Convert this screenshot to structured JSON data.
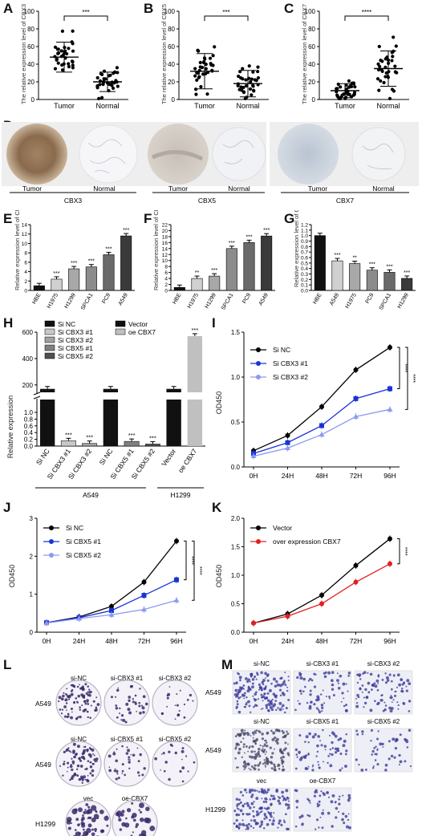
{
  "panels": {
    "A": {
      "letter": "A",
      "ylabel": "The relative expression level of CBX3",
      "categories": [
        "Tumor",
        "Normal"
      ],
      "sig": "***",
      "yticks": [
        "0",
        "20",
        "40",
        "60",
        "80",
        "100"
      ]
    },
    "B": {
      "letter": "B",
      "ylabel": "The relative expression level of CBX5",
      "categories": [
        "Tumor",
        "Normal"
      ],
      "sig": "***",
      "yticks": [
        "0",
        "20",
        "40",
        "60",
        "80",
        "100"
      ]
    },
    "C": {
      "letter": "C",
      "ylabel": "The relative expression level of CBX7",
      "categories": [
        "Tumor",
        "Normal"
      ],
      "sig": "****",
      "yticks": [
        "0",
        "20",
        "40",
        "60",
        "80",
        "100"
      ]
    },
    "D": {
      "letter": "D",
      "groups": [
        {
          "gene": "CBX3",
          "tumor": "Tumor",
          "normal": "Normal"
        },
        {
          "gene": "CBX5",
          "tumor": "Tumor",
          "normal": "Normal"
        },
        {
          "gene": "CBX7",
          "tumor": "Tumor",
          "normal": "Normal"
        }
      ]
    },
    "E": {
      "letter": "E",
      "ylabel": "Relative expression level of CBX3",
      "categories": [
        "HBE",
        "H1975",
        "H1299",
        "SPCA1",
        "PC9",
        "A549"
      ],
      "sig": [
        "",
        "***",
        "***",
        "***",
        "***",
        "***"
      ],
      "yticks": [
        "0",
        "2",
        "4",
        "6",
        "8",
        "10",
        "12",
        "14"
      ]
    },
    "F": {
      "letter": "F",
      "ylabel": "Relative expression level of CBX5",
      "categories": [
        "HBE",
        "H1975",
        "H1299",
        "SPCA1",
        "PC9",
        "A549"
      ],
      "sig": [
        "",
        "**",
        "***",
        "***",
        "***",
        "***"
      ],
      "yticks": [
        "0",
        "2",
        "4",
        "6",
        "8",
        "10",
        "12",
        "14",
        "16",
        "18",
        "20",
        "22"
      ]
    },
    "G": {
      "letter": "G",
      "ylabel": "Relative expression level of CBX7",
      "categories": [
        "HBE",
        "A549",
        "H1975",
        "PC9",
        "SPCA1",
        "H1299"
      ],
      "sig": [
        "",
        "***",
        "**",
        "***",
        "***",
        "***"
      ],
      "yticks": [
        "0.0",
        "0.1",
        "0.2",
        "0.3",
        "0.4",
        "0.5",
        "0.6",
        "0.7",
        "0.8",
        "0.9",
        "1.0",
        "1.1",
        "1.2"
      ]
    },
    "H": {
      "letter": "H",
      "ylabel": "Relative expression",
      "categories": [
        "Si NC",
        "Si CBX3 #1",
        "Si CBX3 #2",
        "Si NC",
        "Si CBX5 #1",
        "Si CBX5 #2",
        "Vector",
        "oe CBX7"
      ],
      "sig": [
        "",
        "***",
        "***",
        "",
        "***",
        "***",
        "",
        "***"
      ],
      "legend_left": [
        "Si NC",
        "Si CBX3 #1",
        "Si CBX3 #2",
        "Si CBX5 #1",
        "Si CBX5 #2"
      ],
      "legend_right": [
        "Vector",
        "oe CBX7"
      ],
      "yticks": [
        "0.0",
        "0.2",
        "0.4",
        "0.6",
        "0.8",
        "1.0",
        "200",
        "400",
        "600"
      ],
      "group_a": "A549",
      "group_b": "H1299"
    },
    "I": {
      "letter": "I",
      "ylabel": "OD450",
      "xticks": [
        "0H",
        "24H",
        "48H",
        "72H",
        "96H"
      ],
      "yticks": [
        "0.0",
        "0.5",
        "1.0",
        "1.5"
      ],
      "sig": [
        "****",
        "****"
      ]
    },
    "J": {
      "letter": "J",
      "ylabel": "OD450",
      "xticks": [
        "0H",
        "24H",
        "48H",
        "72H",
        "96H"
      ],
      "yticks": [
        "0",
        "1",
        "2",
        "3"
      ],
      "sig": [
        "****",
        "****"
      ]
    },
    "K": {
      "letter": "K",
      "ylabel": "OD450",
      "xticks": [
        "0H",
        "24H",
        "48H",
        "72H",
        "96H"
      ],
      "yticks": [
        "0.0",
        "0.5",
        "1.0",
        "1.5",
        "2.0"
      ],
      "sig": [
        "****"
      ]
    },
    "L": {
      "letter": "L",
      "rows": [
        {
          "cell": "A549",
          "labels": [
            "si-NC",
            "si-CBX3 #1",
            "si-CBX3 #2"
          ]
        },
        {
          "cell": "A549",
          "labels": [
            "si-NC",
            "si-CBX5 #1",
            "si-CBX5 #2"
          ]
        },
        {
          "cell": "H1299",
          "labels": [
            "vec",
            "oe-CBX7"
          ]
        }
      ]
    },
    "M": {
      "letter": "M",
      "rows": [
        {
          "cell": "A549",
          "labels": [
            "si-NC",
            "si-CBX3 #1",
            "si-CBX3 #2"
          ]
        },
        {
          "cell": "A549",
          "labels": [
            "si-NC",
            "si-CBX5 #1",
            "si-CBX5 #2"
          ]
        },
        {
          "cell": "H1299",
          "labels": [
            "vec",
            "oe-CBX7"
          ]
        }
      ]
    }
  },
  "chart_data": [
    {
      "panel": "A",
      "type": "scatter",
      "categories": [
        "Tumor",
        "Normal"
      ],
      "mean": [
        48,
        20
      ],
      "sd": [
        17,
        11
      ],
      "ylim": [
        0,
        100
      ],
      "ylabel": "The relative expression level of CBX3"
    },
    {
      "panel": "B",
      "type": "scatter",
      "categories": [
        "Tumor",
        "Normal"
      ],
      "mean": [
        32,
        18
      ],
      "sd": [
        20,
        15
      ],
      "ylim": [
        0,
        100
      ],
      "ylabel": "The relative expression level of CBX5"
    },
    {
      "panel": "C",
      "type": "scatter",
      "categories": [
        "Tumor",
        "Normal"
      ],
      "mean": [
        10,
        35
      ],
      "sd": [
        8,
        20
      ],
      "ylim": [
        0,
        100
      ],
      "ylabel": "The relative expression level of CBX7"
    },
    {
      "panel": "E",
      "type": "bar",
      "categories": [
        "HBE",
        "H1975",
        "H1299",
        "SPCA1",
        "PC9",
        "A549"
      ],
      "values": [
        1.0,
        2.4,
        4.6,
        5.0,
        7.6,
        11.6
      ],
      "ylim": [
        0,
        14
      ],
      "ylabel": "Relative expression level of CBX3",
      "colors": [
        "#111111",
        "#d0d0d0",
        "#a8a8a8",
        "#8c8c8c",
        "#6a6a6a",
        "#3a3a3a"
      ]
    },
    {
      "panel": "F",
      "type": "bar",
      "categories": [
        "HBE",
        "H1975",
        "H1299",
        "SPCA1",
        "PC9",
        "A549"
      ],
      "values": [
        1.0,
        4.0,
        4.8,
        14.0,
        16.0,
        18.2
      ],
      "ylim": [
        0,
        22
      ],
      "ylabel": "Relative expression level of CBX5",
      "colors": [
        "#111111",
        "#d0d0d0",
        "#a8a8a8",
        "#8c8c8c",
        "#6a6a6a",
        "#3a3a3a"
      ]
    },
    {
      "panel": "G",
      "type": "bar",
      "categories": [
        "HBE",
        "A549",
        "H1975",
        "PC9",
        "SPCA1",
        "H1299"
      ],
      "values": [
        1.0,
        0.54,
        0.49,
        0.37,
        0.33,
        0.22
      ],
      "ylim": [
        0,
        1.2
      ],
      "ylabel": "Relative expression level of CBX7",
      "colors": [
        "#111111",
        "#d0d0d0",
        "#a8a8a8",
        "#8c8c8c",
        "#6a6a6a",
        "#3a3a3a"
      ]
    },
    {
      "panel": "H",
      "type": "bar",
      "categories": [
        "Si NC",
        "Si CBX3 #1",
        "Si CBX3 #2",
        "Si NC",
        "Si CBX5 #1",
        "Si CBX5 #2",
        "Vector",
        "oe CBX7"
      ],
      "values": [
        1.0,
        0.16,
        0.08,
        1.0,
        0.14,
        0.06,
        1.0,
        570
      ],
      "ylim": [
        0,
        600
      ],
      "ylabel": "Relative expression",
      "colors": [
        "#111111",
        "#c8c8c8",
        "#a0a0a0",
        "#111111",
        "#808080",
        "#505050",
        "#111111",
        "#c0c0c0"
      ]
    },
    {
      "panel": "I",
      "type": "line",
      "x": [
        "0H",
        "24H",
        "48H",
        "72H",
        "96H"
      ],
      "ylim": [
        0,
        1.5
      ],
      "ylabel": "OD450",
      "series": [
        {
          "name": "Si NC",
          "values": [
            0.18,
            0.35,
            0.67,
            1.08,
            1.33
          ],
          "color": "#000000"
        },
        {
          "name": "Si CBX3 #1",
          "values": [
            0.15,
            0.27,
            0.46,
            0.76,
            0.87
          ],
          "color": "#1a33d6"
        },
        {
          "name": "Si CBX3 #2",
          "values": [
            0.12,
            0.21,
            0.36,
            0.56,
            0.64
          ],
          "color": "#8a9af0"
        }
      ]
    },
    {
      "panel": "J",
      "type": "line",
      "x": [
        "0H",
        "24H",
        "48H",
        "72H",
        "96H"
      ],
      "ylim": [
        0,
        3
      ],
      "ylabel": "OD450",
      "series": [
        {
          "name": "Si NC",
          "values": [
            0.25,
            0.4,
            0.68,
            1.32,
            2.4
          ],
          "color": "#000000"
        },
        {
          "name": "Si CBX5 #1",
          "values": [
            0.25,
            0.38,
            0.57,
            0.97,
            1.38
          ],
          "color": "#1a33d6"
        },
        {
          "name": "Si CBX5 #2",
          "values": [
            0.24,
            0.36,
            0.46,
            0.6,
            0.84
          ],
          "color": "#8a9af0"
        }
      ]
    },
    {
      "panel": "K",
      "type": "line",
      "x": [
        "0H",
        "24H",
        "48H",
        "72H",
        "96H"
      ],
      "ylim": [
        0,
        2
      ],
      "ylabel": "OD450",
      "series": [
        {
          "name": "Vector",
          "values": [
            0.16,
            0.32,
            0.65,
            1.17,
            1.64
          ],
          "color": "#000000"
        },
        {
          "name": "over expression CBX7",
          "values": [
            0.16,
            0.28,
            0.5,
            0.88,
            1.2
          ],
          "color": "#e02020"
        }
      ]
    }
  ]
}
